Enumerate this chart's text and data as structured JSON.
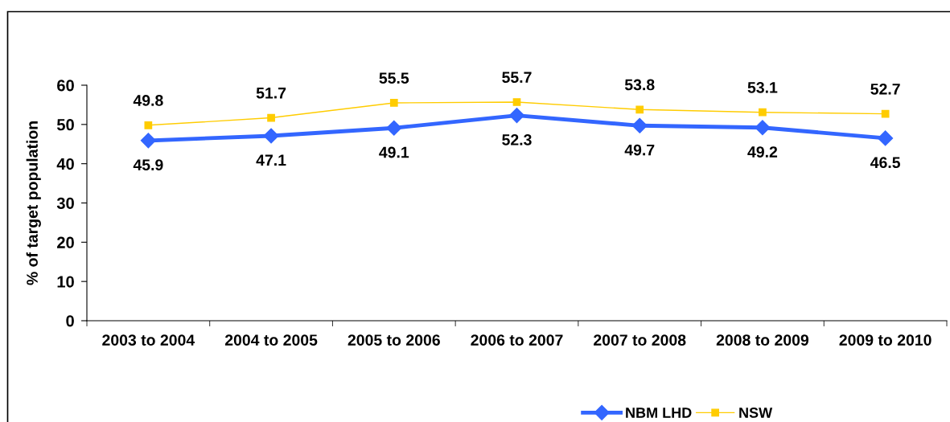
{
  "chart_data": {
    "type": "line",
    "ylabel": "% of target population",
    "categories": [
      "2003 to 2004",
      "2004 to 2005",
      "2005 to 2006",
      "2006 to 2007",
      "2007 to 2008",
      "2008 to 2009",
      "2009 to 2010"
    ],
    "series": [
      {
        "name": "NBM LHD",
        "color": "#3366ff",
        "marker": "diamond",
        "values": [
          45.9,
          47.1,
          49.1,
          52.3,
          49.7,
          49.2,
          46.5
        ]
      },
      {
        "name": "NSW",
        "color": "#ffcc00",
        "marker": "square",
        "values": [
          49.8,
          51.7,
          55.5,
          55.7,
          53.8,
          53.1,
          52.7
        ]
      }
    ],
    "ylim": [
      0,
      60
    ],
    "yticks": [
      0,
      10,
      20,
      30,
      40,
      50,
      60
    ],
    "data_labels": true,
    "grid": false,
    "legend": "bottom",
    "line_style": "solid"
  }
}
